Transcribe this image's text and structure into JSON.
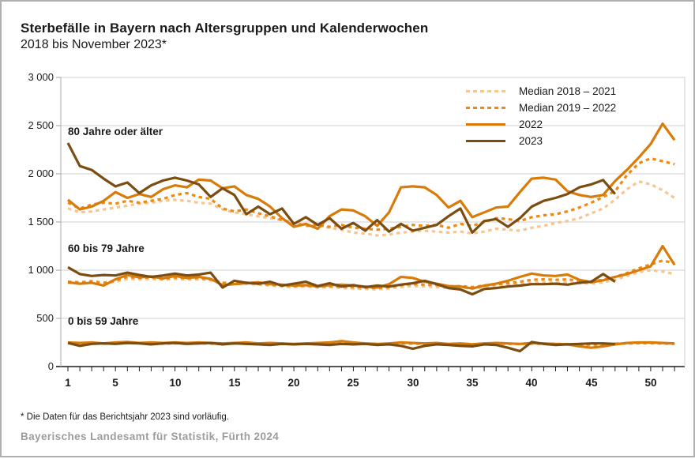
{
  "header": {
    "title": "Sterbefälle in Bayern nach Altersgruppen und Kalenderwochen",
    "subtitle": "2018 bis November 2023*"
  },
  "footnote": "* Die Daten für das Berichtsjahr 2023 sind vorläufig.",
  "source": "Bayerisches Landesamt für Statistik, Fürth 2024",
  "chart_data": {
    "type": "line",
    "x_axis": {
      "min_week": 1,
      "max_week": 52,
      "tick_weeks": [
        1,
        5,
        10,
        15,
        20,
        25,
        30,
        35,
        40,
        45,
        50
      ]
    },
    "y_axis": {
      "min": 0,
      "max": 3000,
      "ticks": [
        {
          "value": 3000,
          "label": "3 000"
        },
        {
          "value": 2500,
          "label": "2 500"
        },
        {
          "value": 2000,
          "label": "2 000"
        },
        {
          "value": 1500,
          "label": "1 500"
        },
        {
          "value": 1000,
          "label": "1 000"
        },
        {
          "value": 500,
          "label": "500"
        },
        {
          "value": 0,
          "label": "0"
        }
      ]
    },
    "legend": {
      "position": "top-right",
      "items": [
        {
          "key": "median_2018_2021",
          "label": "Median 2018 – 2021",
          "color": "#F6C690",
          "dash": true
        },
        {
          "key": "median_2019_2022",
          "label": "Median 2019 – 2022",
          "color": "#EE8A10",
          "dash": true
        },
        {
          "key": "y2022",
          "label": "2022",
          "color": "#D97B08",
          "dash": false
        },
        {
          "key": "y2023",
          "label": "2023",
          "color": "#7C4D10",
          "dash": false
        }
      ]
    },
    "groups": [
      {
        "id": "80plus",
        "name": "80 Jahre oder älter",
        "series": {
          "median_2018_2021": [
            1640,
            1600,
            1610,
            1630,
            1650,
            1670,
            1690,
            1700,
            1720,
            1730,
            1720,
            1700,
            1690,
            1630,
            1600,
            1580,
            1560,
            1540,
            1520,
            1490,
            1470,
            1460,
            1440,
            1420,
            1390,
            1380,
            1360,
            1370,
            1390,
            1400,
            1410,
            1400,
            1390,
            1400,
            1380,
            1400,
            1430,
            1420,
            1410,
            1440,
            1460,
            1490,
            1510,
            1540,
            1590,
            1640,
            1730,
            1840,
            1920,
            1890,
            1830,
            1750
          ],
          "median_2019_2022": [
            1700,
            1640,
            1680,
            1700,
            1690,
            1720,
            1700,
            1720,
            1740,
            1780,
            1800,
            1760,
            1740,
            1640,
            1610,
            1630,
            1590,
            1560,
            1520,
            1490,
            1460,
            1470,
            1450,
            1470,
            1440,
            1430,
            1420,
            1430,
            1450,
            1470,
            1460,
            1470,
            1440,
            1480,
            1460,
            1500,
            1540,
            1530,
            1510,
            1550,
            1570,
            1580,
            1610,
            1650,
            1700,
            1760,
            1820,
            1985,
            2110,
            2160,
            2130,
            2100
          ],
          "y2022": [
            1730,
            1630,
            1660,
            1720,
            1810,
            1750,
            1790,
            1760,
            1840,
            1880,
            1860,
            1940,
            1930,
            1850,
            1870,
            1780,
            1740,
            1660,
            1540,
            1450,
            1480,
            1430,
            1560,
            1630,
            1620,
            1560,
            1460,
            1600,
            1860,
            1870,
            1860,
            1780,
            1650,
            1720,
            1550,
            1600,
            1650,
            1660,
            1810,
            1950,
            1960,
            1940,
            1820,
            1780,
            1760,
            1780,
            1925,
            2040,
            2170,
            2310,
            2520,
            2350
          ],
          "y2023": [
            2320,
            2080,
            2040,
            1950,
            1870,
            1910,
            1800,
            1880,
            1930,
            1960,
            1930,
            1890,
            1760,
            1850,
            1780,
            1580,
            1660,
            1580,
            1640,
            1480,
            1550,
            1470,
            1540,
            1430,
            1490,
            1410,
            1520,
            1400,
            1480,
            1410,
            1440,
            1470,
            1560,
            1640,
            1390,
            1510,
            1530,
            1450,
            1540,
            1660,
            1720,
            1750,
            1790,
            1860,
            1890,
            1935,
            1790
          ]
        }
      },
      {
        "id": "60to79",
        "name": "60 bis 79 Jahre",
        "series": {
          "median_2018_2021": [
            870,
            860,
            870,
            860,
            880,
            910,
            905,
            910,
            900,
            910,
            900,
            905,
            895,
            865,
            855,
            860,
            850,
            840,
            830,
            825,
            830,
            820,
            825,
            815,
            810,
            805,
            800,
            810,
            825,
            835,
            830,
            825,
            815,
            820,
            810,
            820,
            835,
            845,
            855,
            870,
            875,
            870,
            875,
            865,
            860,
            875,
            900,
            940,
            980,
            1000,
            985,
            960
          ],
          "median_2019_2022": [
            880,
            875,
            885,
            870,
            890,
            930,
            920,
            925,
            910,
            925,
            915,
            920,
            905,
            870,
            865,
            870,
            860,
            850,
            840,
            835,
            840,
            830,
            835,
            830,
            825,
            820,
            815,
            825,
            845,
            855,
            850,
            845,
            830,
            835,
            825,
            840,
            855,
            865,
            880,
            900,
            905,
            900,
            905,
            890,
            885,
            900,
            930,
            970,
            1020,
            1060,
            1100,
            1075
          ],
          "y2022": [
            875,
            860,
            870,
            840,
            905,
            950,
            925,
            935,
            915,
            940,
            920,
            930,
            910,
            845,
            855,
            865,
            875,
            855,
            850,
            840,
            845,
            830,
            845,
            850,
            840,
            830,
            820,
            855,
            930,
            920,
            880,
            860,
            835,
            830,
            810,
            840,
            860,
            890,
            930,
            965,
            945,
            940,
            955,
            900,
            875,
            895,
            930,
            960,
            1000,
            1040,
            1250,
            1055
          ],
          "y2023": [
            1030,
            960,
            940,
            950,
            945,
            975,
            950,
            930,
            945,
            965,
            945,
            955,
            975,
            820,
            890,
            870,
            860,
            880,
            840,
            860,
            880,
            835,
            865,
            830,
            845,
            825,
            840,
            830,
            850,
            865,
            890,
            855,
            815,
            800,
            750,
            805,
            815,
            830,
            840,
            855,
            855,
            860,
            850,
            870,
            880,
            960,
            880
          ]
        }
      },
      {
        "id": "0to59",
        "name": "0 bis 59 Jahre",
        "series": {
          "median_2018_2021": [
            240,
            236,
            240,
            236,
            240,
            244,
            240,
            240,
            236,
            240,
            236,
            240,
            236,
            234,
            238,
            240,
            234,
            236,
            234,
            232,
            234,
            236,
            238,
            244,
            238,
            234,
            232,
            234,
            238,
            236,
            234,
            236,
            232,
            234,
            228,
            234,
            236,
            234,
            232,
            236,
            234,
            232,
            228,
            226,
            224,
            228,
            234,
            238,
            240,
            240,
            238,
            234
          ],
          "median_2019_2022": [
            245,
            240,
            245,
            240,
            245,
            250,
            245,
            245,
            240,
            245,
            240,
            245,
            240,
            238,
            242,
            245,
            238,
            240,
            238,
            235,
            238,
            240,
            242,
            250,
            242,
            238,
            235,
            238,
            242,
            240,
            238,
            240,
            235,
            238,
            232,
            238,
            240,
            238,
            235,
            240,
            238,
            235,
            232,
            230,
            228,
            232,
            238,
            242,
            245,
            245,
            242,
            238
          ],
          "y2022": [
            250,
            245,
            250,
            240,
            250,
            255,
            245,
            250,
            245,
            250,
            245,
            250,
            245,
            240,
            245,
            250,
            240,
            245,
            240,
            235,
            240,
            245,
            250,
            265,
            250,
            240,
            235,
            240,
            250,
            245,
            240,
            245,
            235,
            240,
            230,
            240,
            245,
            240,
            235,
            245,
            240,
            235,
            230,
            210,
            195,
            210,
            230,
            245,
            250,
            250,
            245,
            240
          ],
          "y2023": [
            245,
            215,
            235,
            240,
            235,
            245,
            240,
            230,
            240,
            245,
            235,
            240,
            245,
            230,
            240,
            235,
            230,
            225,
            235,
            230,
            235,
            230,
            225,
            235,
            230,
            235,
            225,
            230,
            215,
            185,
            215,
            230,
            225,
            215,
            210,
            230,
            225,
            195,
            160,
            255,
            235,
            225,
            230,
            235,
            240,
            240,
            235
          ]
        }
      }
    ]
  }
}
